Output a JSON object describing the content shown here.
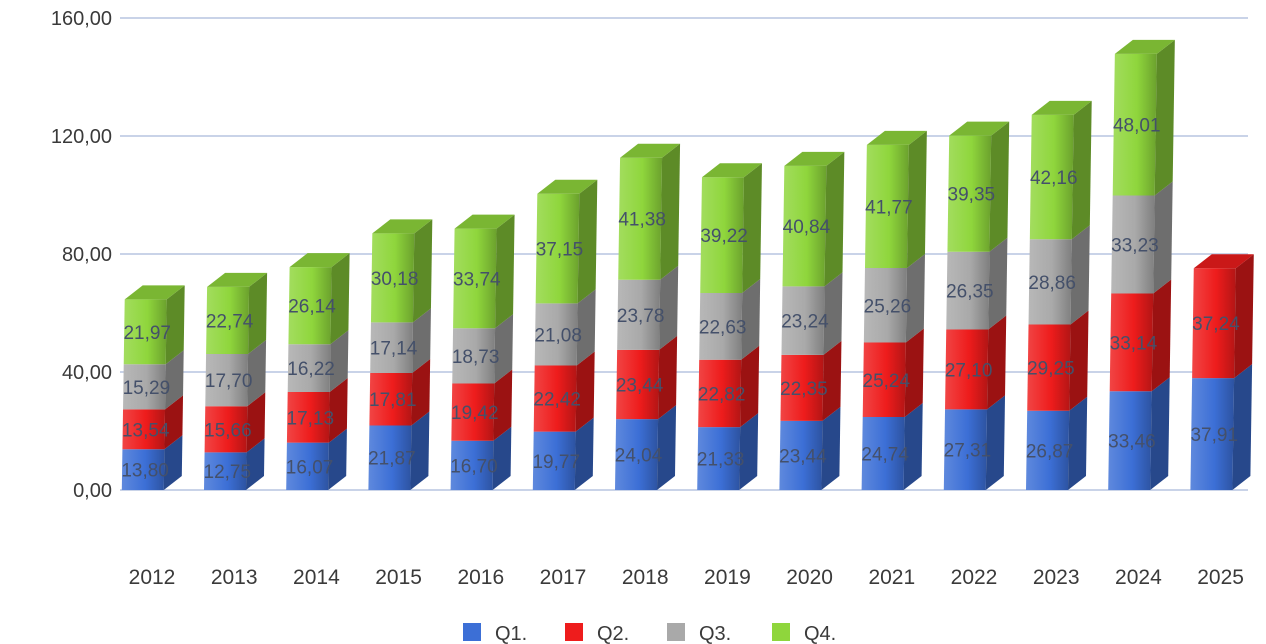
{
  "chart_data": {
    "type": "bar",
    "stacked": true,
    "three_d": true,
    "categories": [
      "2012",
      "2013",
      "2014",
      "2015",
      "2016",
      "2017",
      "2018",
      "2019",
      "2020",
      "2021",
      "2022",
      "2023",
      "2024",
      "2025"
    ],
    "series": [
      {
        "name": "Q1.",
        "color": "#3c6fd6",
        "values": [
          13.8,
          12.75,
          16.07,
          21.87,
          16.7,
          19.77,
          24.04,
          21.33,
          23.44,
          24.74,
          27.31,
          26.87,
          33.46,
          37.91
        ],
        "labels": [
          "13,80",
          "12,75",
          "16,07",
          "21,87",
          "16,70",
          "19,77",
          "24,04",
          "21,33",
          "23,44",
          "24,74",
          "27,31",
          "26,87",
          "33,46",
          "37,91"
        ]
      },
      {
        "name": "Q2.",
        "color": "#ee1c1c",
        "values": [
          13.54,
          15.66,
          17.13,
          17.81,
          19.42,
          22.42,
          23.44,
          22.82,
          22.35,
          25.24,
          27.1,
          29.25,
          33.14,
          37.24
        ],
        "labels": [
          "13,54",
          "15,66",
          "17,13",
          "17,81",
          "19,42",
          "22,42",
          "23,44",
          "22,82",
          "22,35",
          "25,24",
          "27,10",
          "29,25",
          "33,14",
          "37,24"
        ]
      },
      {
        "name": "Q3.",
        "color": "#a9a9a9",
        "values": [
          15.29,
          17.7,
          16.22,
          17.14,
          18.73,
          21.08,
          23.78,
          22.63,
          23.24,
          25.26,
          26.35,
          28.86,
          33.23,
          null
        ],
        "labels": [
          "15,29",
          "17,70",
          "16,22",
          "17,14",
          "18,73",
          "21,08",
          "23,78",
          "22,63",
          "23,24",
          "25,26",
          "26,35",
          "28,86",
          "33,23",
          ""
        ]
      },
      {
        "name": "Q4.",
        "color": "#8fd63c",
        "values": [
          21.97,
          22.74,
          26.14,
          30.18,
          33.74,
          37.15,
          41.38,
          39.22,
          40.84,
          41.77,
          39.35,
          42.16,
          48.01,
          null
        ],
        "labels": [
          "21,97",
          "22,74",
          "26,14",
          "30,18",
          "33,74",
          "37,15",
          "41,38",
          "39,22",
          "40,84",
          "41,77",
          "39,35",
          "42,16",
          "48,01",
          ""
        ]
      }
    ],
    "yticks": [
      "0,00",
      "40,00",
      "80,00",
      "120,00",
      "160,00"
    ],
    "ytick_values": [
      0,
      40,
      80,
      120,
      160
    ],
    "ylim": [
      0,
      160
    ],
    "grid": true,
    "legend_position": "bottom"
  }
}
